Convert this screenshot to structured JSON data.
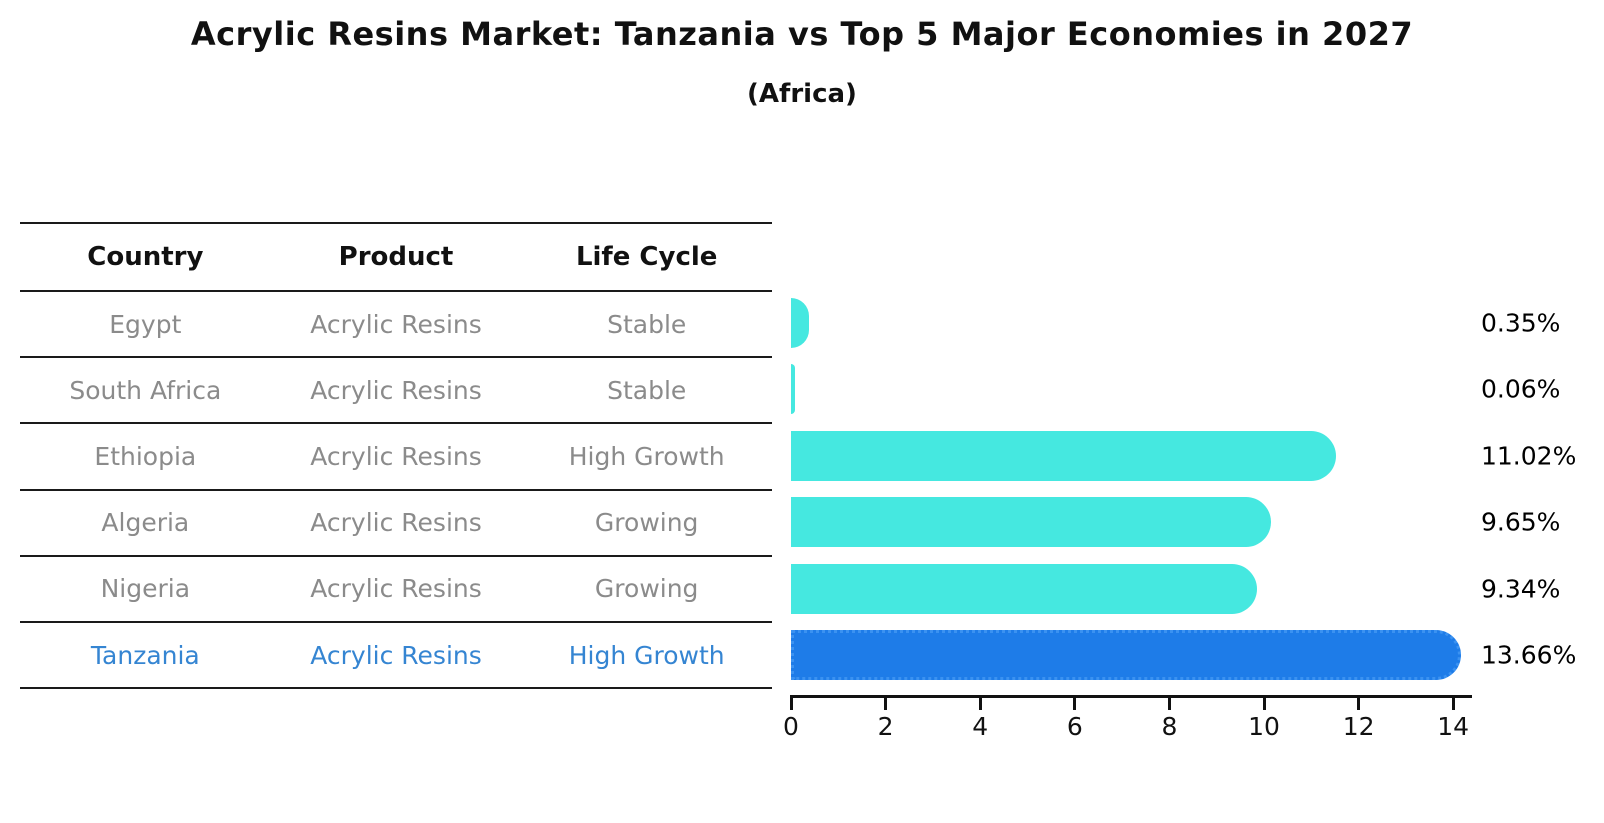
{
  "title": "Acrylic Resins Market: Tanzania vs Top 5 Major Economies in 2027",
  "subtitle": "(Africa)",
  "table": {
    "headers": [
      "Country",
      "Product",
      "Life Cycle"
    ],
    "rows": [
      {
        "country": "Egypt",
        "product": "Acrylic Resins",
        "life_cycle": "Stable",
        "highlight": false
      },
      {
        "country": "South Africa",
        "product": "Acrylic Resins",
        "life_cycle": "Stable",
        "highlight": false
      },
      {
        "country": "Ethiopia",
        "product": "Acrylic Resins",
        "life_cycle": "High Growth",
        "highlight": false
      },
      {
        "country": "Algeria",
        "product": "Acrylic Resins",
        "life_cycle": "Growing",
        "highlight": false
      },
      {
        "country": "Nigeria",
        "product": "Acrylic Resins",
        "life_cycle": "Growing",
        "highlight": true
      }
    ],
    "highlight_row": {
      "country": "Tanzania",
      "product": "Acrylic Resins",
      "life_cycle": "High Growth"
    }
  },
  "chart_data": {
    "type": "bar",
    "orientation": "horizontal",
    "title": "Acrylic Resins Market: Tanzania vs Top 5 Major Economies in 2027 (Africa)",
    "categories": [
      "Egypt",
      "South Africa",
      "Ethiopia",
      "Algeria",
      "Nigeria",
      "Tanzania"
    ],
    "values": [
      0.35,
      0.06,
      11.02,
      9.65,
      9.34,
      13.66
    ],
    "value_labels": [
      "0.35%",
      "0.06%",
      "11.02%",
      "9.65%",
      "9.34%",
      "13.66%"
    ],
    "unit": "%",
    "x_ticks": [
      0,
      2,
      4,
      6,
      8,
      10,
      12,
      14
    ],
    "xlim": [
      0,
      14.4
    ],
    "grid": false,
    "legend": false,
    "highlight_index": 5,
    "colors": {
      "default": "#45e8e0",
      "highlight": "#1e7ce8",
      "highlight_edge": "#3b92f1",
      "axis": "#111111"
    }
  }
}
